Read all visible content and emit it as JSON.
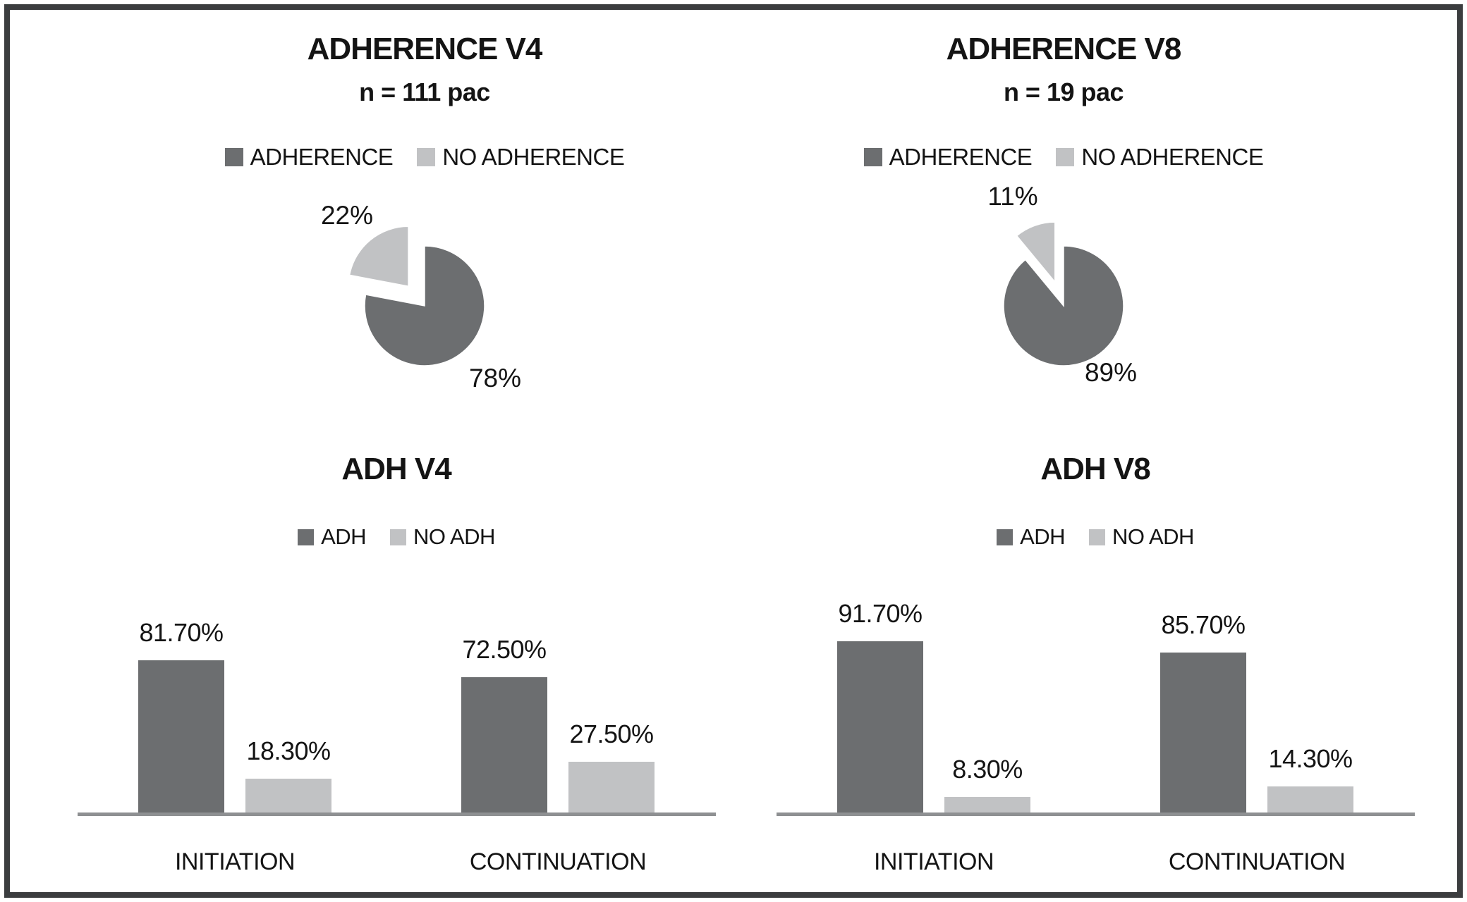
{
  "colors": {
    "dark_series": "#6c6e70",
    "light_series": "#c1c2c4",
    "axis_line": "#8e9092",
    "frame_border": "#3b3d3f",
    "text": "#141414",
    "background": "#ffffff"
  },
  "chart_data": [
    {
      "id": "pie-adherence-v4",
      "type": "pie",
      "title": "ADHERENCE V4",
      "subtitle": "n = 111 pac",
      "legend": [
        "ADHERENCE",
        "NO ADHERENCE"
      ],
      "labels": [
        "ADHERENCE",
        "NO ADHERENCE"
      ],
      "values": [
        78,
        22
      ],
      "value_labels": [
        "78%",
        "22%"
      ],
      "exploded_index": 1,
      "start_angle": "top",
      "direction": "clockwise",
      "legend_position": "top"
    },
    {
      "id": "pie-adherence-v8",
      "type": "pie",
      "title": "ADHERENCE V8",
      "subtitle": "n = 19 pac",
      "legend": [
        "ADHERENCE",
        "NO ADHERENCE"
      ],
      "labels": [
        "ADHERENCE",
        "NO ADHERENCE"
      ],
      "values": [
        89,
        11
      ],
      "value_labels": [
        "89%",
        "11%"
      ],
      "exploded_index": 1,
      "start_angle": "top",
      "direction": "clockwise",
      "legend_position": "top"
    },
    {
      "id": "bar-adh-v4",
      "type": "bar",
      "title": "ADH V4",
      "legend": [
        "ADH",
        "NO ADH"
      ],
      "categories": [
        "INITIATION",
        "CONTINUATION"
      ],
      "series": [
        {
          "name": "ADH",
          "values": [
            81.7,
            72.5
          ],
          "value_labels": [
            "81.70%",
            "72.50%"
          ]
        },
        {
          "name": "NO ADH",
          "values": [
            18.3,
            27.5
          ],
          "value_labels": [
            "18.30%",
            "27.50%"
          ]
        }
      ],
      "ylim": [
        0,
        100
      ],
      "grid": false,
      "y_axis_visible": false,
      "legend_position": "top"
    },
    {
      "id": "bar-adh-v8",
      "type": "bar",
      "title": "ADH V8",
      "legend": [
        "ADH",
        "NO ADH"
      ],
      "categories": [
        "INITIATION",
        "CONTINUATION"
      ],
      "series": [
        {
          "name": "ADH",
          "values": [
            91.7,
            85.7
          ],
          "value_labels": [
            "91.70%",
            "85.70%"
          ]
        },
        {
          "name": "NO ADH",
          "values": [
            8.3,
            14.3
          ],
          "value_labels": [
            "8.30%",
            "14.30%"
          ]
        }
      ],
      "ylim": [
        0,
        100
      ],
      "grid": false,
      "y_axis_visible": false,
      "legend_position": "top"
    }
  ]
}
